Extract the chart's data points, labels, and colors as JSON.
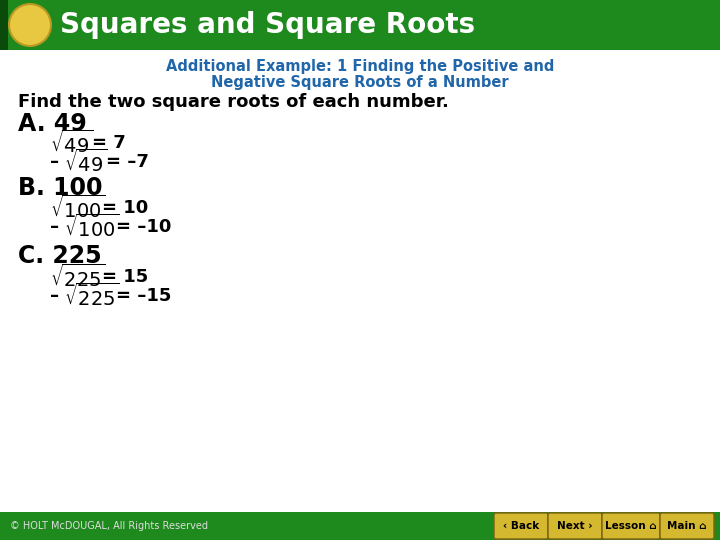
{
  "title": "Squares and Square Roots",
  "header_bg_color": "#1e8a1e",
  "header_text_color": "#ffffff",
  "ellipse_color": "#e8c840",
  "body_bg_color": "#ffffff",
  "subtitle_color": "#2266aa",
  "subtitle_line1": "Additional Example: 1 Finding the Positive and",
  "subtitle_line2": "Negative Square Roots of a Number",
  "instruction": "Find the two square roots of each number.",
  "footer_bg_color": "#1e8a1e",
  "footer_text": "© HOLT McDOUGAL, All Rights Reserved",
  "sections": [
    {
      "label": "A. 49",
      "rows": [
        {
          "prefix": "",
          "radicand": "49",
          "result": "= 7"
        },
        {
          "prefix": "–",
          "radicand": "49",
          "result": "= –7"
        }
      ]
    },
    {
      "label": "B. 100",
      "rows": [
        {
          "prefix": "",
          "radicand": "100",
          "result": "= 10"
        },
        {
          "prefix": "–",
          "radicand": "100",
          "result": "= –10"
        }
      ]
    },
    {
      "label": "C. 225",
      "rows": [
        {
          "prefix": "",
          "radicand": "225",
          "result": "= 15"
        },
        {
          "prefix": "–",
          "radicand": "225",
          "result": "= –15"
        }
      ]
    }
  ],
  "button_labels": [
    "Back",
    "Next",
    "Lesson",
    "Main"
  ],
  "button_color": "#d4b830"
}
